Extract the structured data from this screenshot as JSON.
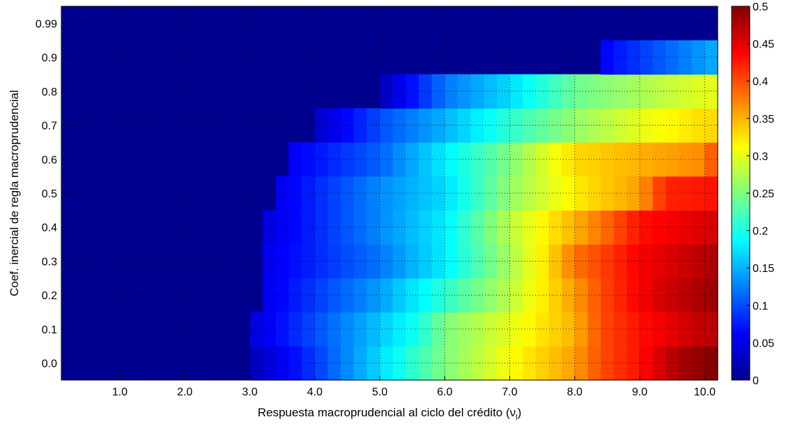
{
  "chart_data": {
    "type": "heatmap",
    "title": "",
    "xlabel": "Respuesta macroprudencial al ciclo del crédito (ν",
    "xlabel_subscript": "l",
    "xlabel_close": ")",
    "ylabel": "Coef. inercial de regla macroprudencial",
    "x_range": [
      0.1,
      10.2
    ],
    "x_step": 0.2,
    "x_ticks": [
      1.0,
      2.0,
      3.0,
      4.0,
      5.0,
      6.0,
      7.0,
      8.0,
      9.0,
      10.0
    ],
    "x_tick_labels": [
      "1.0",
      "2.0",
      "3.0",
      "4.0",
      "5.0",
      "6.0",
      "7.0",
      "8.0",
      "9.0",
      "10.0"
    ],
    "y_rows": [
      0.0,
      0.1,
      0.2,
      0.3,
      0.4,
      0.5,
      0.6,
      0.7,
      0.8,
      0.9,
      0.99
    ],
    "y_tick_labels": [
      "0.0",
      "0.1",
      "0.2",
      "0.3",
      "0.4",
      "0.5",
      "0.6",
      "0.7",
      "0.8",
      "0.9",
      "0.99"
    ],
    "grid": true,
    "colormap": "jet",
    "colorbar": {
      "min": 0,
      "max": 0.5,
      "ticks": [
        0,
        0.05,
        0.1,
        0.15,
        0.2,
        0.25,
        0.3,
        0.35,
        0.4,
        0.45,
        0.5
      ],
      "tick_labels": [
        "0",
        "0.05",
        "0.1",
        "0.15",
        "0.2",
        "0.25",
        "0.3",
        "0.35",
        "0.4",
        "0.45",
        "0.5"
      ],
      "placement": "right"
    },
    "rows": [
      {
        "y": 0.0,
        "x_start": 3.0,
        "x_end": 10.2,
        "points": [
          [
            3.0,
            0.02
          ],
          [
            4.0,
            0.09
          ],
          [
            5.0,
            0.17
          ],
          [
            6.0,
            0.25
          ],
          [
            7.0,
            0.31
          ],
          [
            8.0,
            0.36
          ],
          [
            8.4,
            0.4
          ],
          [
            9.0,
            0.43
          ],
          [
            9.6,
            0.48
          ],
          [
            10.2,
            0.5
          ]
        ]
      },
      {
        "y": 0.1,
        "x_start": 3.0,
        "x_end": 10.2,
        "points": [
          [
            3.0,
            0.04
          ],
          [
            4.0,
            0.1
          ],
          [
            5.0,
            0.16
          ],
          [
            5.6,
            0.2
          ],
          [
            6.0,
            0.25
          ],
          [
            7.0,
            0.3
          ],
          [
            8.0,
            0.35
          ],
          [
            8.4,
            0.4
          ],
          [
            9.0,
            0.43
          ],
          [
            10.0,
            0.47
          ],
          [
            10.2,
            0.47
          ]
        ]
      },
      {
        "y": 0.2,
        "x_start": 3.2,
        "x_end": 10.2,
        "points": [
          [
            3.2,
            0.05
          ],
          [
            4.0,
            0.09
          ],
          [
            5.0,
            0.14
          ],
          [
            6.0,
            0.21
          ],
          [
            7.0,
            0.28
          ],
          [
            8.0,
            0.36
          ],
          [
            8.4,
            0.4
          ],
          [
            9.0,
            0.44
          ],
          [
            9.4,
            0.46
          ],
          [
            10.2,
            0.49
          ]
        ]
      },
      {
        "y": 0.3,
        "x_start": 3.2,
        "x_end": 10.2,
        "points": [
          [
            3.2,
            0.05
          ],
          [
            4.0,
            0.08
          ],
          [
            5.0,
            0.12
          ],
          [
            6.0,
            0.18
          ],
          [
            7.0,
            0.27
          ],
          [
            7.6,
            0.33
          ],
          [
            8.0,
            0.38
          ],
          [
            9.0,
            0.44
          ],
          [
            10.2,
            0.48
          ]
        ]
      },
      {
        "y": 0.4,
        "x_start": 3.2,
        "x_end": 10.2,
        "points": [
          [
            3.2,
            0.04
          ],
          [
            4.0,
            0.08
          ],
          [
            5.0,
            0.13
          ],
          [
            6.0,
            0.18
          ],
          [
            7.0,
            0.28
          ],
          [
            8.0,
            0.35
          ],
          [
            8.4,
            0.38
          ],
          [
            9.0,
            0.43
          ],
          [
            10.2,
            0.46
          ]
        ]
      },
      {
        "y": 0.5,
        "x_start": 3.4,
        "x_end": 10.2,
        "points": [
          [
            3.4,
            0.05
          ],
          [
            4.0,
            0.08
          ],
          [
            5.0,
            0.13
          ],
          [
            6.0,
            0.17
          ],
          [
            7.0,
            0.26
          ],
          [
            8.0,
            0.32
          ],
          [
            9.0,
            0.36
          ],
          [
            9.4,
            0.42
          ],
          [
            10.2,
            0.43
          ]
        ]
      },
      {
        "y": 0.6,
        "x_start": 3.6,
        "x_end": 10.2,
        "points": [
          [
            3.6,
            0.06
          ],
          [
            4.0,
            0.07
          ],
          [
            5.0,
            0.11
          ],
          [
            6.0,
            0.18
          ],
          [
            7.0,
            0.25
          ],
          [
            7.6,
            0.3
          ],
          [
            8.0,
            0.33
          ],
          [
            9.0,
            0.35
          ],
          [
            10.0,
            0.37
          ],
          [
            10.2,
            0.41
          ]
        ]
      },
      {
        "y": 0.7,
        "x_start": 4.0,
        "x_end": 10.2,
        "points": [
          [
            4.0,
            0.03
          ],
          [
            5.0,
            0.1
          ],
          [
            6.0,
            0.15
          ],
          [
            7.0,
            0.21
          ],
          [
            8.0,
            0.26
          ],
          [
            9.0,
            0.3
          ],
          [
            10.0,
            0.33
          ],
          [
            10.2,
            0.33
          ]
        ]
      },
      {
        "y": 0.8,
        "x_start": 5.0,
        "x_end": 10.2,
        "points": [
          [
            5.0,
            0.02
          ],
          [
            6.0,
            0.12
          ],
          [
            7.0,
            0.17
          ],
          [
            8.0,
            0.24
          ],
          [
            9.0,
            0.27
          ],
          [
            10.0,
            0.3
          ],
          [
            10.2,
            0.3
          ]
        ]
      },
      {
        "y": 0.9,
        "x_start": 8.4,
        "x_end": 10.2,
        "points": [
          [
            8.4,
            0.06
          ],
          [
            9.0,
            0.09
          ],
          [
            10.0,
            0.14
          ],
          [
            10.2,
            0.15
          ]
        ]
      },
      {
        "y": 0.99,
        "x_start": null,
        "x_end": null,
        "points": []
      }
    ]
  }
}
